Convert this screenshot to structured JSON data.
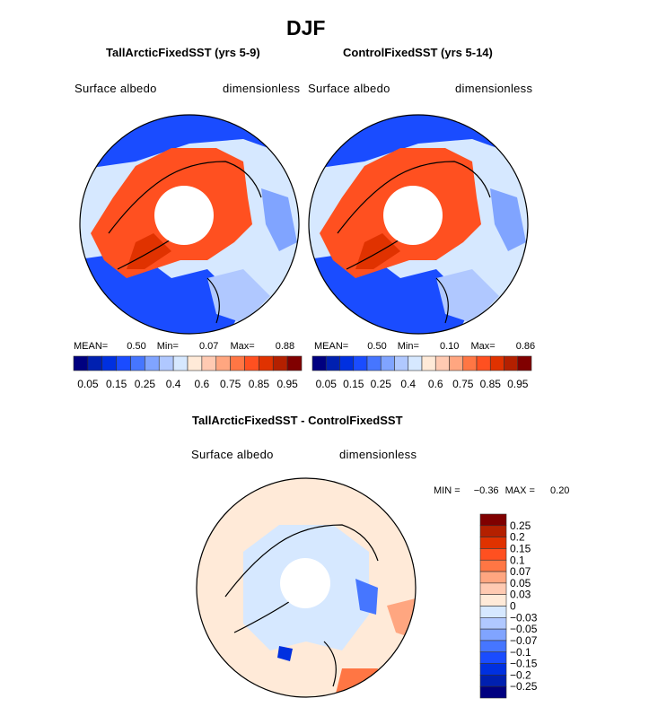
{
  "figure": {
    "title": "DJF",
    "panels": [
      {
        "title": "TallArcticFixedSST (yrs 5-9)",
        "variable": "Surface albedo",
        "units": "dimensionless",
        "stats": {
          "mean_label": "MEAN=",
          "mean": "0.50",
          "min_label": "Min=",
          "min": "0.07",
          "max_label": "Max=",
          "max": "0.88"
        }
      },
      {
        "title": "ControlFixedSST (yrs 5-14)",
        "variable": "Surface albedo",
        "units": "dimensionless",
        "stats": {
          "mean_label": "MEAN=",
          "mean": "0.50",
          "min_label": "Min=",
          "min": "0.10",
          "max_label": "Max=",
          "max": "0.86"
        }
      },
      {
        "title": "TallArcticFixedSST - ControlFixedSST",
        "variable": "Surface albedo",
        "units": "dimensionless",
        "stats": {
          "min_label": "MIN =",
          "min": "−0.36",
          "max_label": "MAX =",
          "max": "0.20"
        }
      }
    ]
  },
  "colorbars": {
    "colors": [
      "#000080",
      "#0020b0",
      "#0030e0",
      "#1a4cff",
      "#4676ff",
      "#80a4ff",
      "#b0c8ff",
      "#d6e8ff",
      "#ffead8",
      "#ffcab2",
      "#ffa680",
      "#ff7644",
      "#ff5020",
      "#e03200",
      "#b42000",
      "#800000"
    ],
    "absolute_labels": [
      "0.05",
      "0.15",
      "0.25",
      "0.4",
      "0.6",
      "0.75",
      "0.85",
      "0.95"
    ],
    "difference_labels": [
      "0.25",
      "0.2",
      "0.15",
      "0.1",
      "0.07",
      "0.05",
      "0.03",
      "0",
      "−0.03",
      "−0.05",
      "−0.07",
      "−0.1",
      "−0.15",
      "−0.2",
      "−0.25"
    ]
  },
  "map_projection": "north polar stereographic"
}
